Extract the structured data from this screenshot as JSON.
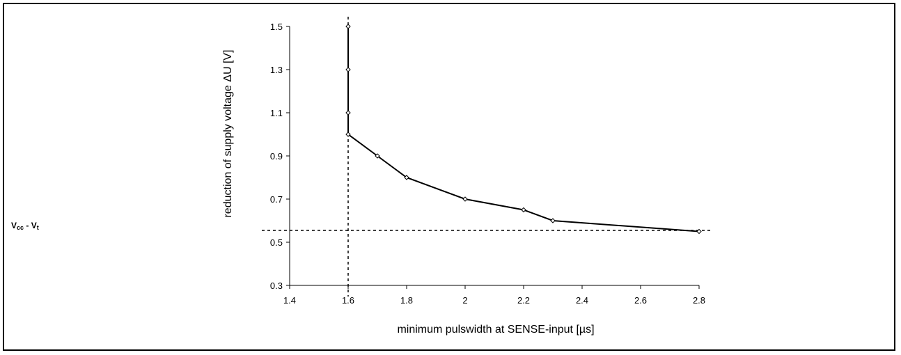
{
  "chart_data": {
    "type": "line",
    "xlabel": "minimum pulswidth at SENSE-input [µs]",
    "ylabel": "reduction of supply voltage ΔU [V]",
    "xlim": [
      1.4,
      2.8
    ],
    "ylim": [
      0.3,
      1.5
    ],
    "x_ticks": [
      "1.4",
      "1.6",
      "1.8",
      "2",
      "2.2",
      "2.4",
      "2.6",
      "2.8"
    ],
    "y_ticks": [
      "0.3",
      "0.5",
      "0.7",
      "0.9",
      "1.1",
      "1.3",
      "1.5"
    ],
    "grid": false,
    "series": [
      {
        "x": [
          1.6,
          1.6,
          1.6,
          1.6,
          1.7,
          1.8,
          2.0,
          2.2,
          2.3,
          2.8
        ],
        "y": [
          1.5,
          1.3,
          1.1,
          1.0,
          0.9,
          0.8,
          0.7,
          0.65,
          0.6,
          0.55
        ],
        "marker": "diamond-open",
        "color": "#000000"
      }
    ],
    "reference_lines": [
      {
        "axis": "x",
        "value": 1.6,
        "style": "dashed"
      },
      {
        "axis": "y",
        "value": 0.555,
        "style": "dashed",
        "label_main": "V",
        "label_sub1": "cc",
        "label_mid": " - V",
        "label_sub2": "t"
      }
    ]
  }
}
